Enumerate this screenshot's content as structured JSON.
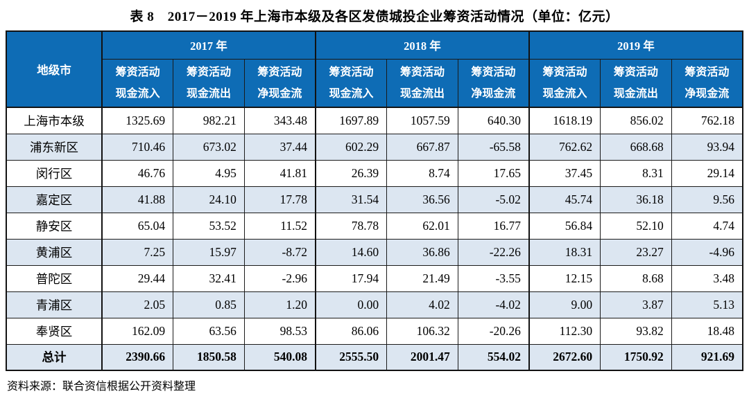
{
  "title": "表 8　2017－2019 年上海市本级及各区发债城投企业筹资活动情况（单位：亿元）",
  "source": "资料来源：联合资信根据公开资料整理",
  "colors": {
    "header_bg": "#0e6cb5",
    "header_text": "#ffffff",
    "alt_row_bg": "#dce6f1",
    "border": "#1a1a1a"
  },
  "table": {
    "region_header": "地级市",
    "year_groups": [
      "2017 年",
      "2018 年",
      "2019 年"
    ],
    "sub_columns": [
      {
        "line1": "筹资活动",
        "line2": "现金流入"
      },
      {
        "line1": "筹资活动",
        "line2": "现金流出"
      },
      {
        "line1": "筹资活动",
        "line2": "净现金流"
      }
    ],
    "rows": [
      {
        "region": "上海市本级",
        "is_total": false,
        "values": [
          "1325.69",
          "982.21",
          "343.48",
          "1697.89",
          "1057.59",
          "640.30",
          "1618.19",
          "856.02",
          "762.18"
        ]
      },
      {
        "region": "浦东新区",
        "is_total": false,
        "values": [
          "710.46",
          "673.02",
          "37.44",
          "602.29",
          "667.87",
          "-65.58",
          "762.62",
          "668.68",
          "93.94"
        ]
      },
      {
        "region": "闵行区",
        "is_total": false,
        "values": [
          "46.76",
          "4.95",
          "41.81",
          "26.39",
          "8.74",
          "17.65",
          "37.45",
          "8.31",
          "29.14"
        ]
      },
      {
        "region": "嘉定区",
        "is_total": false,
        "values": [
          "41.88",
          "24.10",
          "17.78",
          "31.54",
          "36.56",
          "-5.02",
          "45.74",
          "36.18",
          "9.56"
        ]
      },
      {
        "region": "静安区",
        "is_total": false,
        "values": [
          "65.04",
          "53.52",
          "11.52",
          "78.78",
          "62.01",
          "16.77",
          "56.84",
          "52.10",
          "4.74"
        ]
      },
      {
        "region": "黄浦区",
        "is_total": false,
        "values": [
          "7.25",
          "15.97",
          "-8.72",
          "14.60",
          "36.86",
          "-22.26",
          "18.31",
          "23.27",
          "-4.96"
        ]
      },
      {
        "region": "普陀区",
        "is_total": false,
        "values": [
          "29.44",
          "32.41",
          "-2.96",
          "17.94",
          "21.49",
          "-3.55",
          "12.15",
          "8.68",
          "3.48"
        ]
      },
      {
        "region": "青浦区",
        "is_total": false,
        "values": [
          "2.05",
          "0.85",
          "1.20",
          "0.00",
          "4.02",
          "-4.02",
          "9.00",
          "3.87",
          "5.13"
        ]
      },
      {
        "region": "奉贤区",
        "is_total": false,
        "values": [
          "162.09",
          "63.56",
          "98.53",
          "86.06",
          "106.32",
          "-20.26",
          "112.30",
          "93.82",
          "18.48"
        ]
      },
      {
        "region": "总计",
        "is_total": true,
        "values": [
          "2390.66",
          "1850.58",
          "540.08",
          "2555.50",
          "2001.47",
          "554.02",
          "2672.60",
          "1750.92",
          "921.69"
        ]
      }
    ]
  }
}
